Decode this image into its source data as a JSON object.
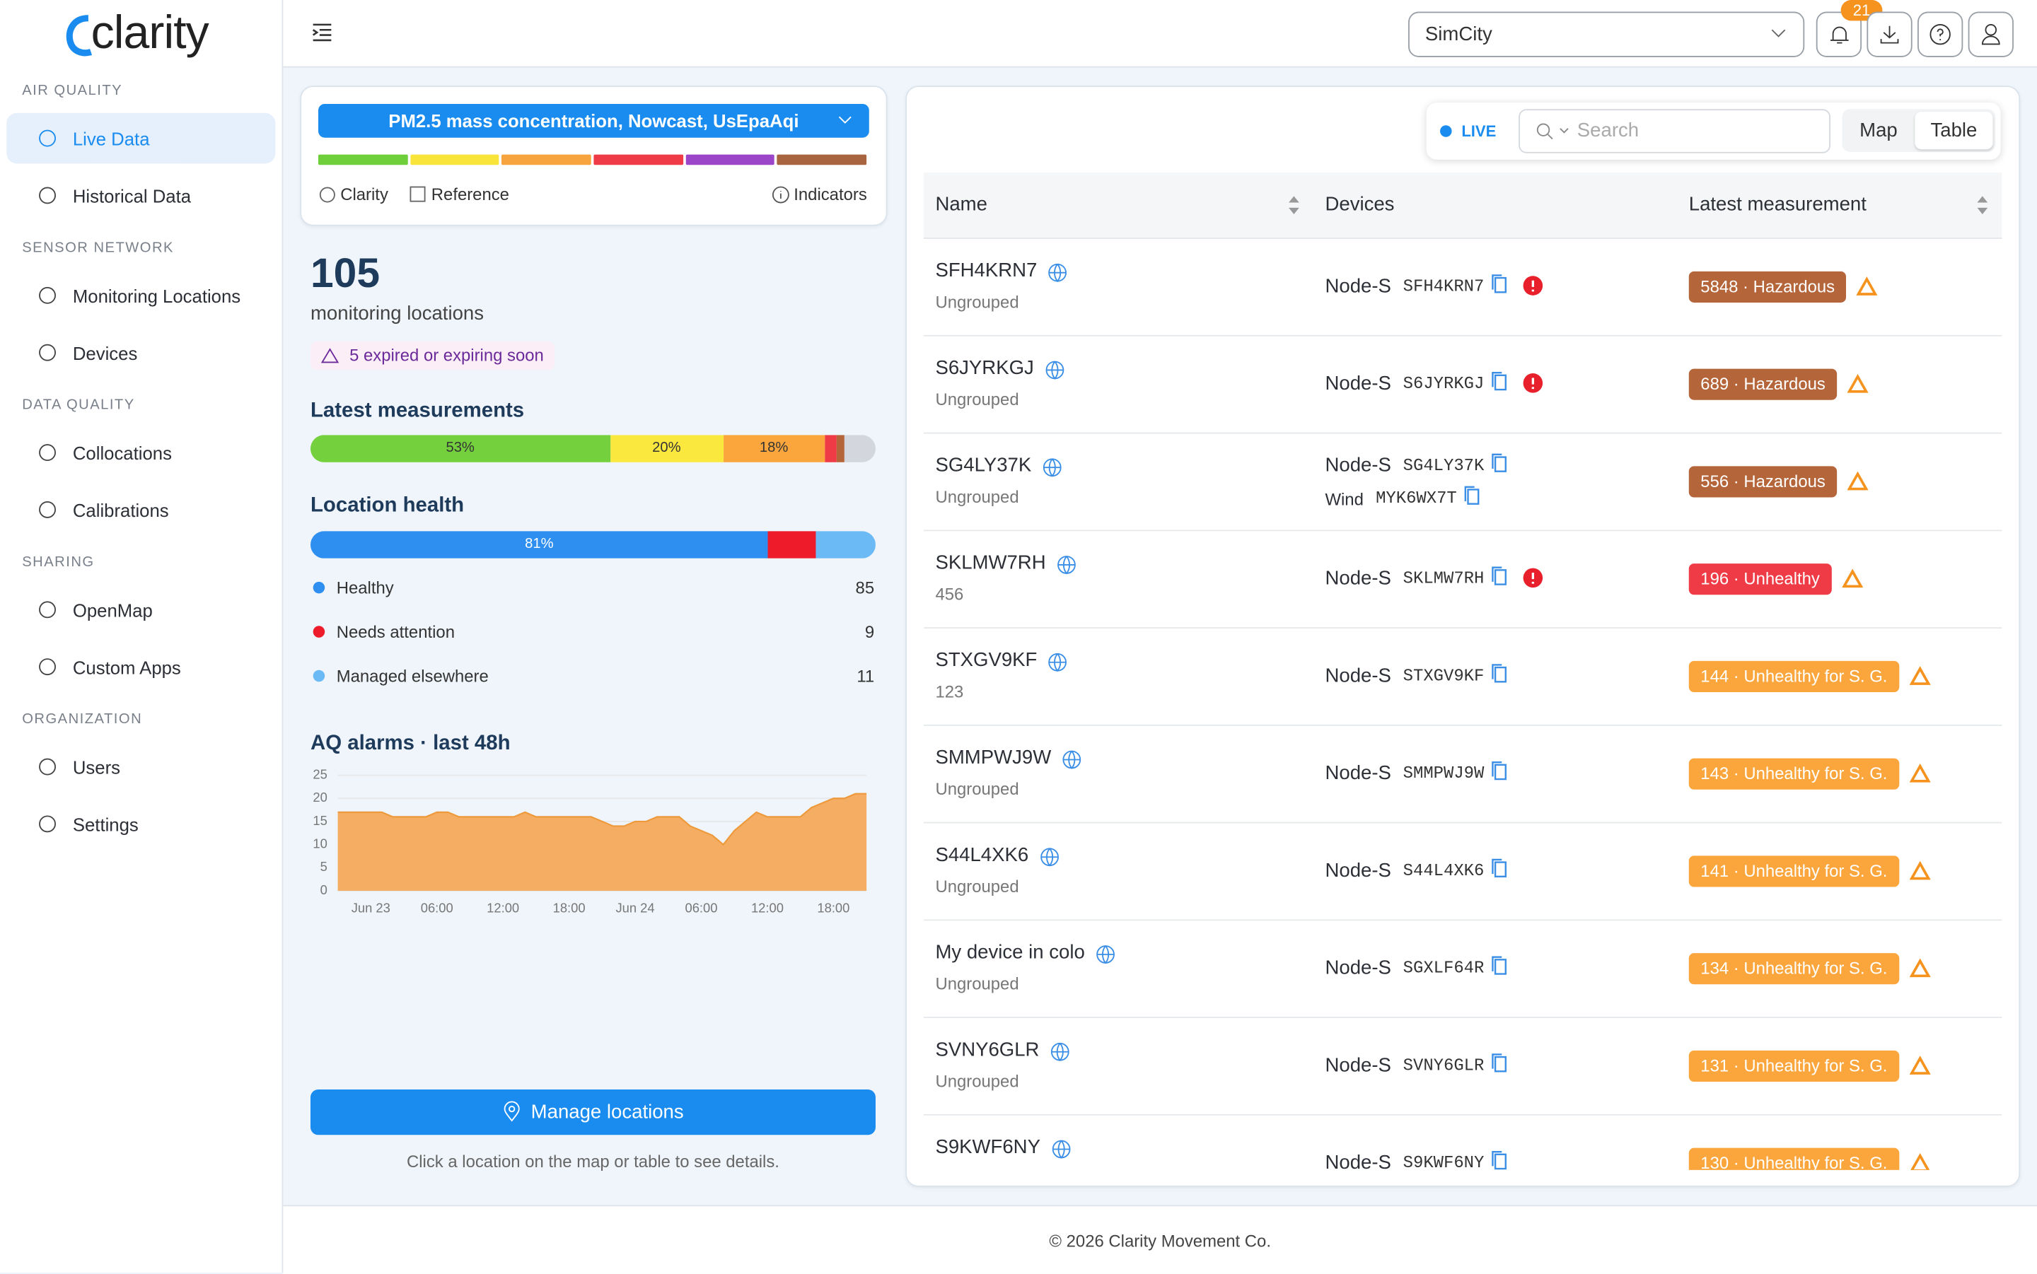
{
  "brand": "clarity",
  "top_bar": {
    "organization": "SimCity",
    "notification_count": 21
  },
  "nav": [
    {
      "section": "AIR QUALITY",
      "items": [
        {
          "label": "Live Data",
          "active": true
        },
        {
          "label": "Historical Data"
        }
      ]
    },
    {
      "section": "SENSOR NETWORK",
      "items": [
        {
          "label": "Monitoring Locations"
        },
        {
          "label": "Devices"
        }
      ]
    },
    {
      "section": "DATA QUALITY",
      "items": [
        {
          "label": "Collocations"
        },
        {
          "label": "Calibrations"
        }
      ]
    },
    {
      "section": "SHARING",
      "items": [
        {
          "label": "OpenMap"
        },
        {
          "label": "Custom Apps"
        }
      ]
    },
    {
      "section": "ORGANIZATION",
      "items": [
        {
          "label": "Users"
        },
        {
          "label": "Settings"
        }
      ]
    }
  ],
  "filter": {
    "metric": "PM2.5 mass concentration, Nowcast, UsEpaAqi",
    "scale_colors": [
      "#6fcf3a",
      "#f9e43a",
      "#f7a33e",
      "#ef3b45",
      "#9b45c9",
      "#a8643e"
    ],
    "options": [
      "Clarity",
      "Reference"
    ],
    "indicators": "Indicators"
  },
  "summary": {
    "count": 105,
    "count_label": "monitoring locations",
    "warning": "5 expired or expiring soon"
  },
  "latest_measurements": {
    "title": "Latest measurements",
    "values": [
      53,
      20,
      18,
      2,
      1.5,
      5.5
    ],
    "value_labels": [
      "53%",
      "20%",
      "18%",
      null,
      null,
      null
    ],
    "colors": [
      "#74d13d",
      "#fbe83f",
      "#fba63c",
      "#ef3b45",
      "#b5653a",
      "#d3d7dd"
    ]
  },
  "location_health": {
    "title": "Location health",
    "items": [
      {
        "name": "Healthy",
        "value": 85,
        "color": "#2e8ff0",
        "share_label": "81%"
      },
      {
        "name": "Needs attention",
        "value": 9,
        "color": "#ee1c2a"
      },
      {
        "name": "Managed elsewhere",
        "value": 11,
        "color": "#6bbaf6"
      }
    ]
  },
  "chart_data": {
    "type": "area",
    "title": "AQ alarms · last 48h",
    "categories": [
      null,
      null,
      null,
      "Jun 23",
      null,
      null,
      null,
      null,
      null,
      "06:00",
      null,
      null,
      null,
      null,
      null,
      "12:00",
      null,
      null,
      null,
      null,
      null,
      "18:00",
      null,
      null,
      null,
      null,
      null,
      "Jun 24",
      null,
      null,
      null,
      null,
      null,
      "06:00",
      null,
      null,
      null,
      null,
      null,
      "12:00",
      null,
      null,
      null,
      null,
      null,
      "18:00",
      null,
      null,
      null
    ],
    "values": [
      17,
      17,
      17,
      17,
      17,
      16,
      16,
      16,
      16,
      17,
      17,
      16,
      16,
      16,
      16,
      16,
      16,
      17,
      16,
      16,
      16,
      16,
      16,
      16,
      15,
      14,
      14,
      15,
      15,
      16,
      16,
      16,
      14,
      13,
      12,
      10,
      13,
      15,
      17,
      16,
      16,
      16,
      16,
      18,
      19,
      20,
      20,
      21,
      21
    ],
    "color": "#f4ad62",
    "ylim": [
      0,
      25
    ],
    "yticks": [
      0,
      5,
      10,
      15,
      20,
      25
    ],
    "grid": true
  },
  "actions": {
    "button": "Manage locations",
    "hint": "Click a location on the map or table to see details."
  },
  "table": {
    "live": "LIVE",
    "search_placeholder": "Search",
    "views": [
      {
        "label": "Map"
      },
      {
        "label": "Table",
        "active": true
      }
    ],
    "columns": [
      "Name",
      "Devices",
      "Latest measurement"
    ],
    "rows": [
      {
        "name": "SFH4KRN7",
        "group": "Ungrouped",
        "devices": [
          {
            "type": "Node-S",
            "id": "SFH4KRN7"
          }
        ],
        "device_alert": true,
        "measurement": "5848 · Hazardous",
        "color": "#b5653a"
      },
      {
        "name": "S6JYRKGJ",
        "group": "Ungrouped",
        "devices": [
          {
            "type": "Node-S",
            "id": "S6JYRKGJ"
          }
        ],
        "device_alert": true,
        "measurement": "689 · Hazardous",
        "color": "#b5653a"
      },
      {
        "name": "SG4LY37K",
        "group": "Ungrouped",
        "devices": [
          {
            "type": "Node-S",
            "id": "SG4LY37K"
          },
          {
            "type": "Wind",
            "id": "MYK6WX7T"
          }
        ],
        "measurement": "556 · Hazardous",
        "color": "#b5653a"
      },
      {
        "name": "SKLMW7RH",
        "group": "456",
        "devices": [
          {
            "type": "Node-S",
            "id": "SKLMW7RH"
          }
        ],
        "device_alert": true,
        "measurement": "196 · Unhealthy",
        "color": "#ef3b45"
      },
      {
        "name": "STXGV9KF",
        "group": "123",
        "devices": [
          {
            "type": "Node-S",
            "id": "STXGV9KF"
          }
        ],
        "measurement": "144 · Unhealthy for S. G.",
        "color": "#fba63c"
      },
      {
        "name": "SMMPWJ9W",
        "group": "Ungrouped",
        "devices": [
          {
            "type": "Node-S",
            "id": "SMMPWJ9W"
          }
        ],
        "measurement": "143 · Unhealthy for S. G.",
        "color": "#fba63c"
      },
      {
        "name": "S44L4XK6",
        "group": "Ungrouped",
        "devices": [
          {
            "type": "Node-S",
            "id": "S44L4XK6"
          }
        ],
        "measurement": "141 · Unhealthy for S. G.",
        "color": "#fba63c"
      },
      {
        "name": "My device in colo",
        "group": "Ungrouped",
        "devices": [
          {
            "type": "Node-S",
            "id": "SGXLF64R"
          }
        ],
        "measurement": "134 · Unhealthy for S. G.",
        "color": "#fba63c"
      },
      {
        "name": "SVNY6GLR",
        "group": "Ungrouped",
        "devices": [
          {
            "type": "Node-S",
            "id": "SVNY6GLR"
          }
        ],
        "measurement": "131 · Unhealthy for S. G.",
        "color": "#fba63c"
      },
      {
        "name": "S9KWF6NY",
        "devices": [
          {
            "type": "Node-S",
            "id": "S9KWF6NY"
          }
        ],
        "measurement": "130 · Unhealthy for S. G.",
        "color": "#fba63c"
      }
    ]
  },
  "footer": "© 2026 Clarity Movement Co."
}
